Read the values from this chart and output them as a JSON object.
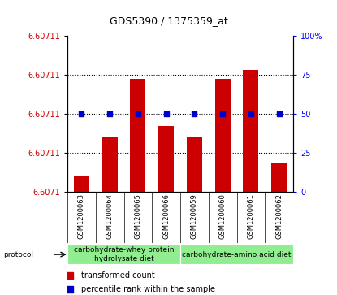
{
  "title": "GDS5390 / 1375359_at",
  "samples": [
    "GSM1200063",
    "GSM1200064",
    "GSM1200065",
    "GSM1200066",
    "GSM1200059",
    "GSM1200060",
    "GSM1200061",
    "GSM1200062"
  ],
  "bar_pct": [
    10,
    35,
    72,
    42,
    35,
    72,
    78,
    18
  ],
  "dot_pct": [
    50,
    50,
    50,
    50,
    50,
    50,
    50,
    50
  ],
  "left_tick_positions": [
    0,
    25,
    50,
    75,
    100
  ],
  "left_tick_labels": [
    "6.6071",
    "6.60711",
    "6.60711",
    "6.60711",
    "6.60711"
  ],
  "right_tick_positions": [
    0,
    25,
    50,
    75,
    100
  ],
  "right_tick_labels": [
    "0",
    "25",
    "50",
    "75",
    "100%"
  ],
  "bar_color": "#cc0000",
  "dot_color": "#0000cc",
  "grid_color": "#000000",
  "group1_label": "carbohydrate-whey protein\nhydrolysate diet",
  "group2_label": "carbohydrate-amino acid diet",
  "group_color": "#90ee90",
  "group1_indices": [
    0,
    1,
    2,
    3
  ],
  "group2_indices": [
    4,
    5,
    6,
    7
  ],
  "protocol_label": "protocol",
  "legend_label1": "transformed count",
  "legend_label2": "percentile rank within the sample",
  "tick_area_bg": "#c8c8c8",
  "plot_bg_color": "#ffffff",
  "title_fontsize": 9,
  "tick_fontsize": 7,
  "sample_fontsize": 6,
  "legend_fontsize": 7,
  "proto_fontsize": 6.5
}
